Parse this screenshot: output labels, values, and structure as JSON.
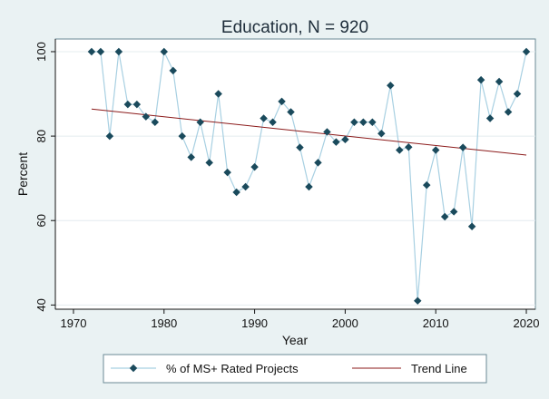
{
  "chart_data": {
    "type": "line",
    "title": "Education, N = 920",
    "xlabel": "Year",
    "ylabel": "Percent",
    "xlim": [
      1968,
      2021
    ],
    "ylim": [
      39,
      103
    ],
    "xticks": [
      1970,
      1980,
      1990,
      2000,
      2010,
      2020
    ],
    "yticks": [
      40,
      60,
      80,
      100
    ],
    "grid": "horizontal",
    "legend": "bottom",
    "series": [
      {
        "name": "% of MS+ Rated Projects",
        "color": "#a8d0e2",
        "marker_color": "#1a4a5c",
        "x": [
          1972,
          1973,
          1974,
          1975,
          1976,
          1977,
          1978,
          1979,
          1980,
          1981,
          1982,
          1983,
          1984,
          1985,
          1986,
          1987,
          1988,
          1989,
          1990,
          1991,
          1992,
          1993,
          1994,
          1995,
          1996,
          1997,
          1998,
          1999,
          2000,
          2001,
          2002,
          2003,
          2004,
          2005,
          2006,
          2007,
          2008,
          2009,
          2010,
          2011,
          2012,
          2013,
          2014,
          2015,
          2016,
          2017,
          2018,
          2019,
          2020
        ],
        "y": [
          100,
          100,
          80,
          100,
          87.5,
          87.5,
          84.6,
          83.3,
          100,
          95.5,
          80,
          75,
          83.3,
          73.7,
          90,
          71.4,
          66.7,
          68,
          72.7,
          84.2,
          83.3,
          88.2,
          85.7,
          77.3,
          68,
          73.7,
          81,
          78.6,
          79.2,
          83.3,
          83.3,
          83.3,
          80.6,
          92,
          76.7,
          77.4,
          41,
          68.4,
          76.7,
          60.9,
          62.1,
          77.3,
          58.6,
          93.3,
          84.2,
          92.9,
          85.7,
          90,
          100
        ]
      },
      {
        "name": "Trend Line",
        "color": "#8b1a1a",
        "x": [
          1972,
          2020
        ],
        "y": [
          86.4,
          75.5
        ]
      }
    ]
  }
}
